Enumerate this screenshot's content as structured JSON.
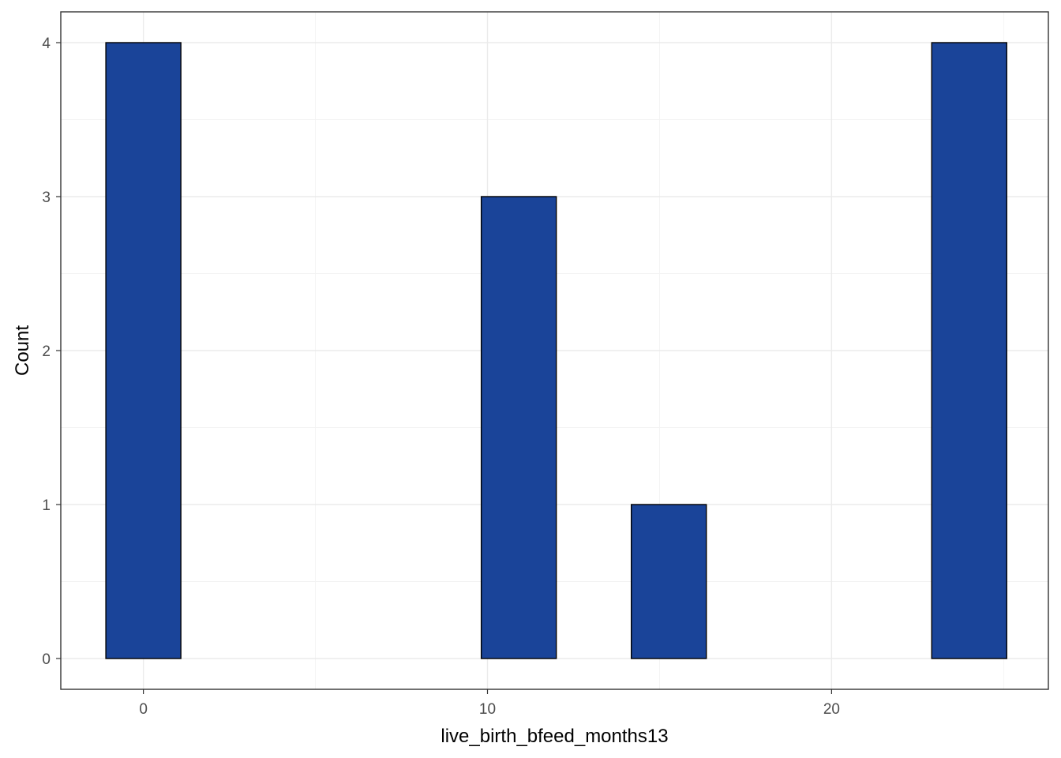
{
  "chart_data": {
    "type": "bar",
    "subtype": "histogram",
    "bins": [
      {
        "x_start": -1.09,
        "x_end": 1.09,
        "count": 4
      },
      {
        "x_start": 1.09,
        "x_end": 3.27,
        "count": 0
      },
      {
        "x_start": 3.27,
        "x_end": 5.45,
        "count": 0
      },
      {
        "x_start": 5.45,
        "x_end": 7.64,
        "count": 0
      },
      {
        "x_start": 7.64,
        "x_end": 9.82,
        "count": 0
      },
      {
        "x_start": 9.82,
        "x_end": 12.0,
        "count": 3
      },
      {
        "x_start": 12.0,
        "x_end": 14.18,
        "count": 0
      },
      {
        "x_start": 14.18,
        "x_end": 16.36,
        "count": 1
      },
      {
        "x_start": 16.36,
        "x_end": 18.55,
        "count": 0
      },
      {
        "x_start": 18.55,
        "x_end": 20.73,
        "count": 0
      },
      {
        "x_start": 20.73,
        "x_end": 22.91,
        "count": 0
      },
      {
        "x_start": 22.91,
        "x_end": 25.09,
        "count": 4
      }
    ],
    "xlabel": "live_birth_bfeed_months13",
    "ylabel": "Count",
    "x_ticks": [
      0,
      10,
      20
    ],
    "y_ticks": [
      0,
      1,
      2,
      3,
      4
    ],
    "xlim": [
      -2.4,
      26.3
    ],
    "ylim": [
      -0.2,
      4.2
    ],
    "grid": true,
    "fill_color": "#1a4499",
    "outline_color": "#000000"
  }
}
